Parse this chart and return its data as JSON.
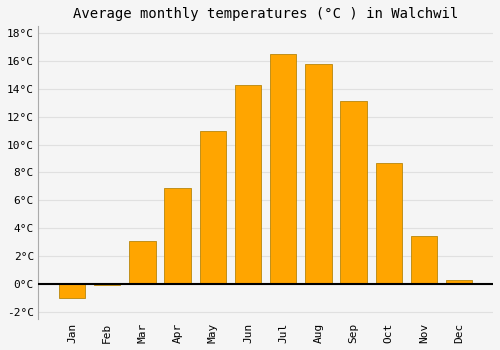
{
  "months": [
    "Jan",
    "Feb",
    "Mar",
    "Apr",
    "May",
    "Jun",
    "Jul",
    "Aug",
    "Sep",
    "Oct",
    "Nov",
    "Dec"
  ],
  "temperatures": [
    -1.0,
    -0.1,
    3.1,
    6.9,
    11.0,
    14.3,
    16.5,
    15.8,
    13.1,
    8.7,
    3.4,
    0.3
  ],
  "bar_color": "#FFA500",
  "bar_edge_color": "#b8860b",
  "title": "Average monthly temperatures (°C ) in Walchwil",
  "ylim": [
    -2.5,
    18.5
  ],
  "ytick_values": [
    -2,
    0,
    2,
    4,
    6,
    8,
    10,
    12,
    14,
    16,
    18
  ],
  "background_color": "#f5f5f5",
  "plot_bg_color": "#f5f5f5",
  "grid_color": "#e0e0e0",
  "zero_line_color": "#000000",
  "title_fontsize": 10,
  "tick_fontsize": 8,
  "bar_width": 0.75
}
